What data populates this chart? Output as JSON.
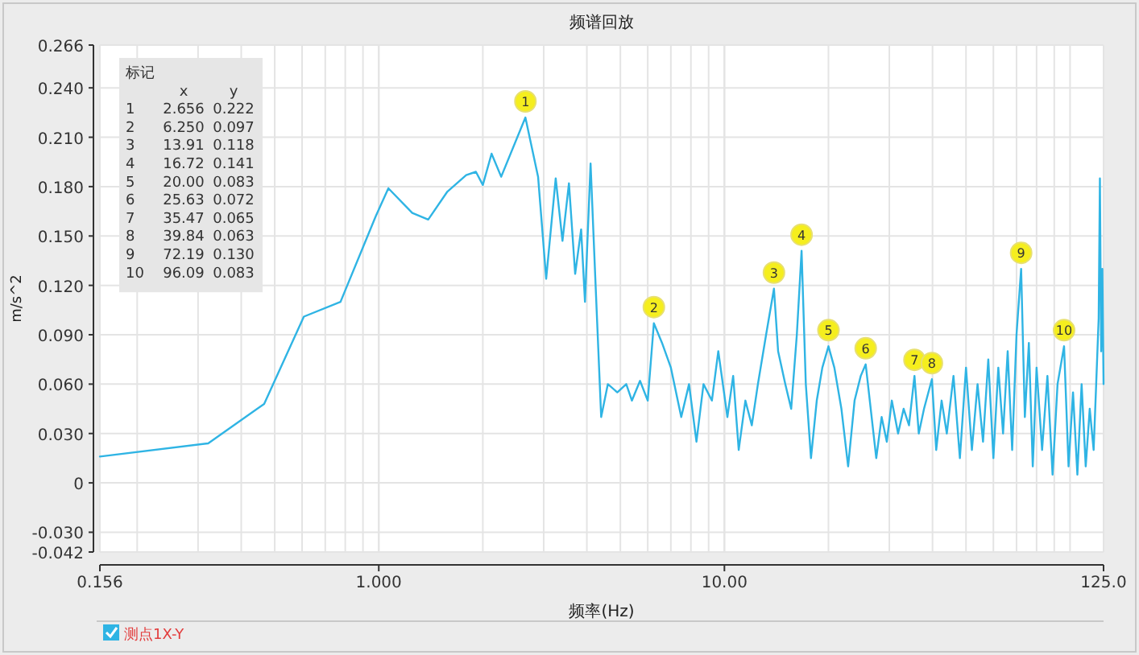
{
  "chart_data": {
    "type": "line",
    "title": "频谱回放",
    "xlabel": "频率(Hz)",
    "ylabel": "m/s^2",
    "log": "x",
    "xlim": [
      0.156,
      125
    ],
    "xticks": [
      {
        "value": 0.156,
        "label": "0.156"
      },
      {
        "value": 1,
        "label": "1.000"
      },
      {
        "value": 10,
        "label": "10.00"
      },
      {
        "value": 125,
        "label": "125.0"
      }
    ],
    "ylim": [
      -0.042,
      0.266
    ],
    "yticks": [
      {
        "value": 0.266,
        "label": "0.266"
      },
      {
        "value": 0.24,
        "label": "0.240"
      },
      {
        "value": 0.21,
        "label": "0.210"
      },
      {
        "value": 0.18,
        "label": "0.180"
      },
      {
        "value": 0.15,
        "label": "0.150"
      },
      {
        "value": 0.12,
        "label": "0.120"
      },
      {
        "value": 0.09,
        "label": "0.090"
      },
      {
        "value": 0.06,
        "label": "0.060"
      },
      {
        "value": 0.03,
        "label": "0.030"
      },
      0,
      {
        "value": -0.03,
        "label": "-0.030"
      },
      {
        "value": -0.042,
        "label": "-0.042"
      }
    ],
    "grid": true,
    "legend": "bottom left",
    "marker": "none",
    "line_style": "solid",
    "series": [
      {
        "name": "测点1X-Y",
        "color": "#2fb4e4",
        "x": [
          0.156,
          0.321,
          0.466,
          0.607,
          0.775,
          0.98,
          1.066,
          1.25,
          1.39,
          1.58,
          1.79,
          1.91,
          2.0,
          2.12,
          2.26,
          2.656,
          2.89,
          3.05,
          3.25,
          3.4,
          3.55,
          3.7,
          3.85,
          3.95,
          4.1,
          4.23,
          4.4,
          4.6,
          4.9,
          5.2,
          5.4,
          5.7,
          6.0,
          6.25,
          6.6,
          7.0,
          7.5,
          7.9,
          8.3,
          8.7,
          9.2,
          9.6,
          10.2,
          10.6,
          11.0,
          11.5,
          12.0,
          12.5,
          13.2,
          13.91,
          14.3,
          15.0,
          15.6,
          16.2,
          16.72,
          17.2,
          17.8,
          18.5,
          19.2,
          20.0,
          20.8,
          21.8,
          22.8,
          23.8,
          24.8,
          25.63,
          26.5,
          27.5,
          28.5,
          29.5,
          30.5,
          31.8,
          33.0,
          34.2,
          35.47,
          36.5,
          37.8,
          39.84,
          41,
          42.5,
          44,
          46,
          48,
          50,
          52,
          54,
          56,
          58,
          60,
          62,
          64,
          66,
          68,
          70,
          72.19,
          74,
          76,
          78,
          80,
          83,
          86,
          89,
          92,
          96.09,
          99,
          102,
          105,
          108,
          111,
          114,
          117,
          119,
          121,
          122,
          123,
          124,
          125
        ],
        "values": [
          0.016,
          0.024,
          0.048,
          0.101,
          0.11,
          0.162,
          0.179,
          0.164,
          0.16,
          0.177,
          0.187,
          0.189,
          0.181,
          0.2,
          0.186,
          0.222,
          0.186,
          0.124,
          0.185,
          0.147,
          0.182,
          0.127,
          0.154,
          0.11,
          0.194,
          0.125,
          0.04,
          0.06,
          0.055,
          0.06,
          0.05,
          0.062,
          0.05,
          0.097,
          0.085,
          0.07,
          0.04,
          0.06,
          0.025,
          0.06,
          0.05,
          0.08,
          0.04,
          0.065,
          0.02,
          0.05,
          0.035,
          0.06,
          0.09,
          0.118,
          0.08,
          0.06,
          0.045,
          0.09,
          0.141,
          0.06,
          0.015,
          0.05,
          0.07,
          0.083,
          0.07,
          0.045,
          0.01,
          0.05,
          0.065,
          0.072,
          0.045,
          0.015,
          0.04,
          0.025,
          0.05,
          0.03,
          0.045,
          0.035,
          0.065,
          0.03,
          0.045,
          0.063,
          0.02,
          0.05,
          0.03,
          0.065,
          0.015,
          0.07,
          0.02,
          0.06,
          0.025,
          0.075,
          0.015,
          0.07,
          0.03,
          0.08,
          0.02,
          0.09,
          0.13,
          0.04,
          0.085,
          0.01,
          0.07,
          0.02,
          0.065,
          0.005,
          0.06,
          0.083,
          0.01,
          0.055,
          0.005,
          0.06,
          0.01,
          0.045,
          0.02,
          0.06,
          0.1,
          0.185,
          0.08,
          0.13,
          0.06
        ]
      }
    ],
    "annotations": [
      {
        "text": "1",
        "x": 2.656,
        "y": 0.222
      },
      {
        "text": "2",
        "x": 6.25,
        "y": 0.097
      },
      {
        "text": "3",
        "x": 13.91,
        "y": 0.118
      },
      {
        "text": "4",
        "x": 16.72,
        "y": 0.141
      },
      {
        "text": "5",
        "x": 20.0,
        "y": 0.083
      },
      {
        "text": "6",
        "x": 25.63,
        "y": 0.072
      },
      {
        "text": "7",
        "x": 35.47,
        "y": 0.065
      },
      {
        "text": "8",
        "x": 39.84,
        "y": 0.063
      },
      {
        "text": "9",
        "x": 72.19,
        "y": 0.13
      },
      {
        "text": "10",
        "x": 96.09,
        "y": 0.083
      },
      "标记",
      "\tx\ty",
      "1\t2.656\t0.222",
      "2\t6.250\t0.097",
      "3\t13.91\t0.118",
      "4\t16.72\t0.141",
      "5\t20.00\t0.083",
      "6\t25.63\t0.072",
      "7\t35.47\t0.065",
      "8\t39.84\t0.063",
      "9\t72.19\t0.130",
      "10\t96.09\t0.083"
    ]
  }
}
